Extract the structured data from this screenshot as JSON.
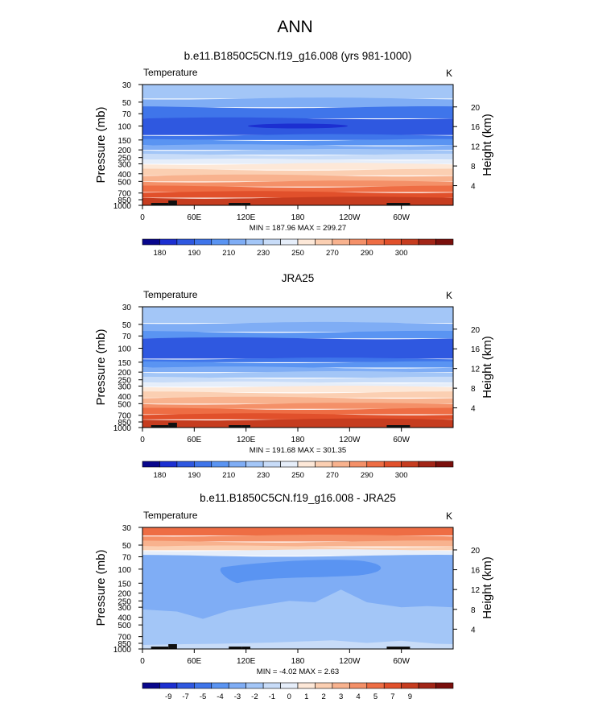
{
  "page": {
    "main_title": "ANN"
  },
  "colors": {
    "contour_palette": [
      "#08068c",
      "#1c2fd1",
      "#2f58e0",
      "#3f75ea",
      "#5a94f2",
      "#7fadf5",
      "#a3c6f7",
      "#c8dcf8",
      "#e6eefa",
      "#fde8d8",
      "#fbcfb2",
      "#f8b28e",
      "#f49068",
      "#ee6d44",
      "#e1502b",
      "#c63c1f",
      "#a22517",
      "#7a0f0c"
    ],
    "land": "#111111"
  },
  "panels": [
    {
      "title": "b.e11.B1850C5CN.f19_g16.008 (yrs 981-1000)",
      "left_label": "Temperature",
      "right_label": "K",
      "y_axis_label": "Pressure (mb)",
      "y2_axis_label": "Height (km)",
      "stats": "MIN = 187.96  MAX = 299.27",
      "colorbar_labels": [
        "180",
        "190",
        "210",
        "230",
        "250",
        "270",
        "290",
        "300"
      ]
    },
    {
      "title": "JRA25",
      "left_label": "Temperature",
      "right_label": "K",
      "y_axis_label": "Pressure (mb)",
      "y2_axis_label": "Height (km)",
      "stats": "MIN = 191.68  MAX = 301.35",
      "colorbar_labels": [
        "180",
        "190",
        "210",
        "230",
        "250",
        "270",
        "290",
        "300"
      ]
    },
    {
      "title": "b.e11.B1850C5CN.f19_g16.008 - JRA25",
      "left_label": "Temperature",
      "right_label": "K",
      "y_axis_label": "Pressure (mb)",
      "y2_axis_label": "Height (km)",
      "stats": "MIN = -4.02  MAX =  2.63",
      "colorbar_labels": [
        "-9",
        "-7",
        "-5",
        "-4",
        "-3",
        "-2",
        "-1",
        "0",
        "1",
        "2",
        "3",
        "4",
        "5",
        "7",
        "9"
      ]
    }
  ],
  "chart_data": [
    {
      "type": "heatmap",
      "title": "b.e11.B1850C5CN.f19_g16.008 (yrs 981-1000)",
      "xlabel": "",
      "ylabel": "Pressure (mb)",
      "y2label": "Height (km)",
      "x_ticks": [
        "0",
        "60E",
        "120E",
        "180",
        "120W",
        "60W"
      ],
      "y_ticks": [
        "30",
        "50",
        "70",
        "100",
        "150",
        "200",
        "250",
        "300",
        "400",
        "500",
        "700",
        "850",
        "1000"
      ],
      "y2_ticks": [
        "20",
        "16",
        "12",
        "8",
        "4"
      ],
      "xlim": [
        0,
        360
      ],
      "ylim": [
        1000,
        30
      ],
      "min": 187.96,
      "max": 299.27,
      "units": "K",
      "levels": [
        200,
        210,
        215,
        220,
        225,
        230,
        235,
        240,
        245,
        250,
        255,
        260,
        265,
        270,
        275,
        280,
        285,
        290
      ]
    },
    {
      "type": "heatmap",
      "title": "JRA25",
      "xlabel": "",
      "ylabel": "Pressure (mb)",
      "y2label": "Height (km)",
      "x_ticks": [
        "0",
        "60E",
        "120E",
        "180",
        "120W",
        "60W"
      ],
      "y_ticks": [
        "30",
        "50",
        "70",
        "100",
        "150",
        "200",
        "250",
        "300",
        "400",
        "500",
        "700",
        "850",
        "1000"
      ],
      "y2_ticks": [
        "20",
        "16",
        "12",
        "8",
        "4"
      ],
      "xlim": [
        0,
        360
      ],
      "ylim": [
        1000,
        30
      ],
      "min": 191.68,
      "max": 301.35,
      "units": "K",
      "levels": [
        200,
        210,
        215,
        220,
        225,
        230,
        235,
        240,
        245,
        250,
        255,
        260,
        265,
        270,
        275,
        280,
        285,
        290
      ]
    },
    {
      "type": "heatmap",
      "title": "b.e11.B1850C5CN.f19_g16.008 - JRA25",
      "xlabel": "",
      "ylabel": "Pressure (mb)",
      "y2label": "Height (km)",
      "x_ticks": [
        "0",
        "60E",
        "120E",
        "180",
        "120W",
        "60W"
      ],
      "y_ticks": [
        "30",
        "50",
        "70",
        "100",
        "150",
        "200",
        "250",
        "300",
        "400",
        "500",
        "700",
        "850",
        "1000"
      ],
      "y2_ticks": [
        "20",
        "16",
        "12",
        "8",
        "4"
      ],
      "xlim": [
        0,
        360
      ],
      "ylim": [
        1000,
        30
      ],
      "min": -4.02,
      "max": 2.63,
      "units": "K",
      "levels": [
        -9,
        -7,
        -5,
        -4,
        -3,
        -2,
        -1,
        0,
        1,
        2,
        3,
        4,
        5,
        7,
        9
      ]
    }
  ]
}
